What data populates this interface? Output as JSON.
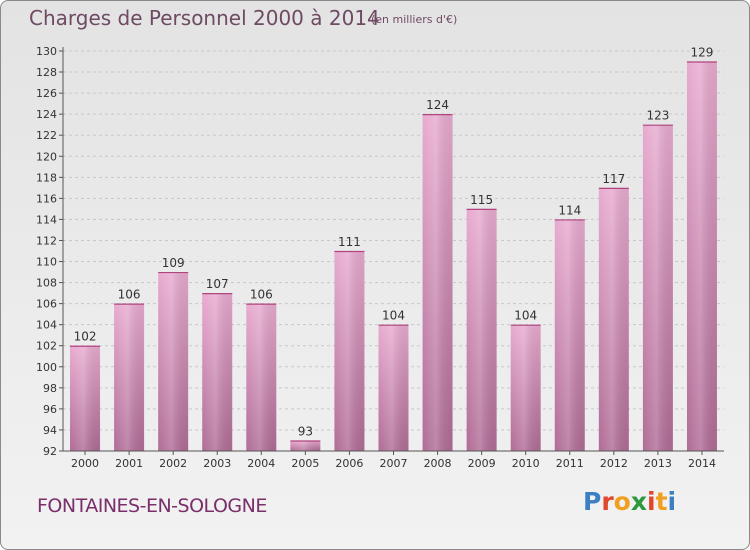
{
  "header": {
    "title": "Charges de Personnel 2000 à 2014",
    "subtitle": "(en milliers d'€)"
  },
  "footer": {
    "town": "FONTAINES-EN-SOLOGNE",
    "logo_letters": [
      "P",
      "r",
      "o",
      "x",
      "i",
      "t",
      "i"
    ],
    "logo_colors": [
      "#3a7fc1",
      "#e0472b",
      "#f0a020",
      "#2c9a3c",
      "#e0472b",
      "#f0a020",
      "#3a7fc1"
    ]
  },
  "chart_data": {
    "type": "bar",
    "title": "Charges de Personnel 2000 à 2014",
    "subtitle": "(en milliers d'€)",
    "categories": [
      "2000",
      "2001",
      "2002",
      "2003",
      "2004",
      "2005",
      "2006",
      "2007",
      "2008",
      "2009",
      "2010",
      "2011",
      "2012",
      "2013",
      "2014"
    ],
    "values": [
      102,
      106,
      109,
      107,
      106,
      93,
      111,
      104,
      124,
      115,
      104,
      114,
      117,
      123,
      129
    ],
    "ylim": [
      92,
      130
    ],
    "yticks": [
      92,
      94,
      96,
      98,
      100,
      102,
      104,
      106,
      108,
      110,
      112,
      114,
      116,
      118,
      120,
      122,
      124,
      126,
      128,
      130
    ],
    "grid": true,
    "bar_color": "#e4a3cb"
  }
}
